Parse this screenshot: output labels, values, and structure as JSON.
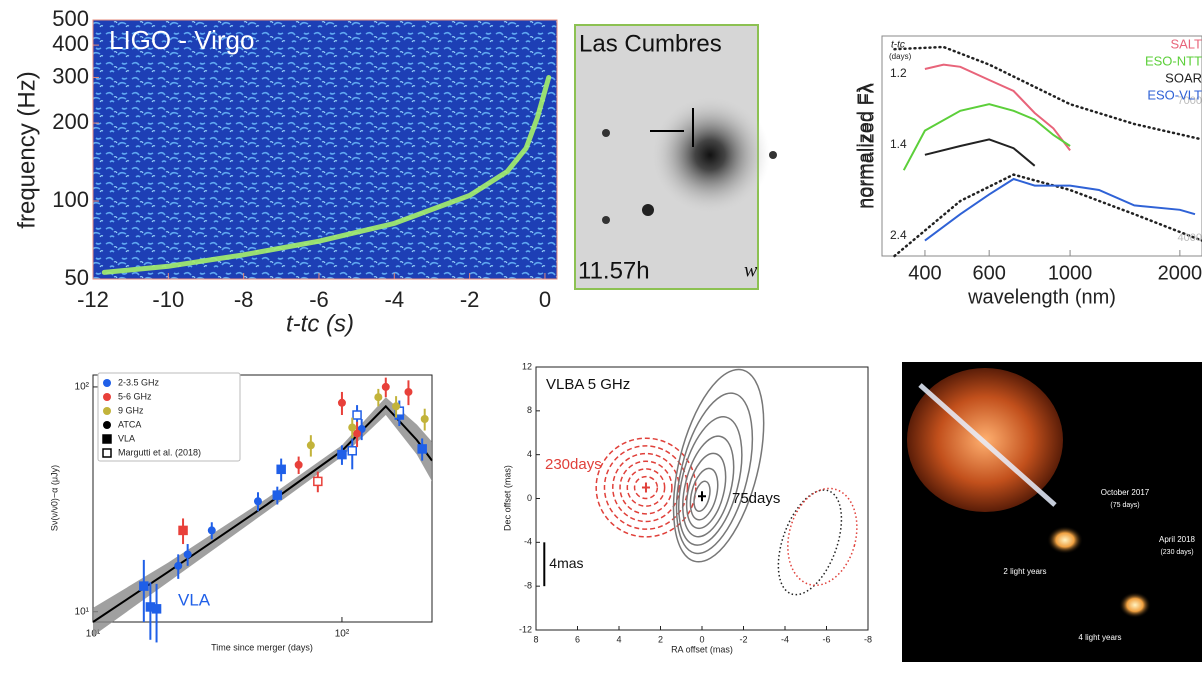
{
  "chart_data": [
    {
      "type": "spectrogram",
      "title": "LIGO - Virgo",
      "x_label": "t-tc (s)",
      "y_label": "frequency (Hz)",
      "xlim": [
        -12,
        0.32
      ],
      "xticks": [
        -12,
        -10,
        -8,
        -6,
        -4,
        -2,
        0
      ],
      "ylim": [
        50,
        500
      ],
      "yticks": [
        50,
        100,
        200,
        300,
        400,
        500
      ],
      "ylog": true,
      "color": "#a6f06a",
      "x": [
        -11.7,
        -10,
        -8,
        -6,
        -4,
        -2,
        -1,
        -0.5,
        -0.2,
        0.1
      ],
      "values": [
        53,
        56,
        62,
        70,
        82,
        105,
        130,
        160,
        210,
        300
      ]
    },
    {
      "type": "line",
      "x_label": "wavelength (nm)",
      "y_label": "normalized Fλ",
      "xlog": true,
      "xlim": [
        305,
        2300
      ],
      "xticks": [
        400,
        600,
        1000,
        2000
      ],
      "ylim": [
        0,
        1
      ],
      "days_label": [
        "t-tc",
        "(days)"
      ],
      "day_labels": [
        "1.2",
        "1.4",
        "2.4"
      ],
      "series": [
        {
          "name": "SALT",
          "color": "#e8647a",
          "x": [
            400,
            450,
            500,
            600,
            700,
            800,
            900,
            1000
          ],
          "values": [
            0.85,
            0.87,
            0.86,
            0.8,
            0.75,
            0.65,
            0.58,
            0.48
          ]
        },
        {
          "name": "ESO-NTT",
          "color": "#5ccf3a",
          "x": [
            350,
            400,
            500,
            600,
            700,
            800,
            900,
            1000
          ],
          "values": [
            0.39,
            0.57,
            0.66,
            0.69,
            0.66,
            0.62,
            0.55,
            0.5
          ]
        },
        {
          "name": "SOAR",
          "color": "#222222",
          "x": [
            400,
            500,
            600,
            700,
            800
          ],
          "values": [
            0.46,
            0.5,
            0.53,
            0.49,
            0.41
          ]
        },
        {
          "name": "ESO-VLT",
          "color": "#2f62d6",
          "x": [
            400,
            500,
            600,
            700,
            800,
            1000,
            1200,
            1500,
            2000,
            2200
          ],
          "values": [
            0.07,
            0.19,
            0.28,
            0.35,
            0.32,
            0.32,
            0.3,
            0.23,
            0.21,
            0.19
          ]
        }
      ],
      "models": [
        {
          "label": "7000",
          "x": [
            330,
            450,
            600,
            1000,
            1500,
            2300
          ],
          "values": [
            0.94,
            0.95,
            0.87,
            0.69,
            0.6,
            0.53
          ]
        },
        {
          "label": "4000",
          "x": [
            330,
            500,
            700,
            1000,
            1500,
            2300
          ],
          "values": [
            0.0,
            0.25,
            0.37,
            0.3,
            0.19,
            0.07
          ]
        }
      ]
    },
    {
      "type": "scatter",
      "x_label": "Time since merger (days)",
      "y_label": "Sν(ν/ν0)−α (μJy)",
      "xlog": true,
      "ylog": true,
      "xlim": [
        10,
        230
      ],
      "xticks": [
        {
          "value": 10,
          "label": "10¹"
        },
        {
          "value": 100,
          "label": "10²"
        }
      ],
      "ylim": [
        9,
        113
      ],
      "yticks": [
        {
          "value": 10,
          "label": "10¹"
        },
        {
          "value": 100,
          "label": "10²"
        }
      ],
      "series": [
        {
          "name": "2-3.5 GHz",
          "color": "#1f5fe8",
          "x": [
            16,
            17,
            18,
            22,
            24,
            30,
            46,
            55,
            57,
            100,
            120,
            170,
            210,
            110,
            115,
            170
          ],
          "values": [
            13,
            10.5,
            10.3,
            16,
            18,
            23,
            31,
            33,
            43,
            50,
            65,
            75,
            53,
            52,
            75,
            78
          ],
          "errors": [
            4,
            3,
            3,
            2,
            2,
            2,
            3,
            3,
            5,
            5,
            7,
            8,
            6,
            9,
            8,
            9
          ],
          "markers": [
            "square",
            "square",
            "square",
            "circle",
            "circle",
            "circle",
            "circle",
            "square",
            "square",
            "square",
            "circle",
            "square",
            "square",
            "open-square",
            "open-square",
            "open-square"
          ]
        },
        {
          "name": "5-6 GHz",
          "color": "#e8403a",
          "x": [
            23,
            67,
            100,
            115,
            150,
            185,
            80
          ],
          "values": [
            23,
            45,
            85,
            62,
            100,
            95,
            38
          ],
          "errors": [
            3,
            4,
            10,
            8,
            10,
            12,
            4
          ],
          "markers": [
            "square",
            "circle",
            "circle",
            "circle",
            "circle",
            "circle",
            "open-square"
          ]
        },
        {
          "name": "9 GHz",
          "color": "#c2b33a",
          "x": [
            75,
            110,
            140,
            165,
            215
          ],
          "values": [
            55,
            66,
            90,
            82,
            72
          ],
          "errors": [
            6,
            7,
            8,
            9,
            8
          ],
          "markers": [
            "circle",
            "circle",
            "circle",
            "circle",
            "circle"
          ]
        }
      ],
      "marker_legend": [
        {
          "name": "ATCA",
          "marker": "circle"
        },
        {
          "name": "VLA",
          "marker": "square"
        },
        {
          "name": "Margutti et al. (2018)",
          "marker": "open-square"
        }
      ],
      "model": {
        "x": [
          10,
          20,
          50,
          100,
          150,
          200,
          230
        ],
        "values": [
          9,
          15,
          30,
          52,
          82,
          58,
          47
        ],
        "lower": [
          7.8,
          13.5,
          28,
          49,
          75,
          50,
          38
        ],
        "upper": [
          10.4,
          16.5,
          32,
          55,
          90,
          68,
          57
        ]
      },
      "annotation": {
        "text": "VLA",
        "color": "#1f5fe8"
      }
    },
    {
      "type": "contour",
      "title": "VLBA 5 GHz",
      "x_label": "RA offset (mas)",
      "y_label": "Dec offset (mas)",
      "xlim": [
        8,
        -8
      ],
      "xticks": [
        8,
        6,
        4,
        2,
        0,
        -2,
        -4,
        -6,
        -8
      ],
      "ylim": [
        -12,
        12
      ],
      "yticks": [
        -12,
        -8,
        -4,
        0,
        4,
        8,
        12
      ],
      "contours": [
        {
          "name": "230days",
          "color": "#e0403a",
          "tilt": 0,
          "levels": [
            [
              2.7,
              1,
              2.4,
              4.5
            ],
            [
              2.7,
              1,
              2,
              3.8
            ],
            [
              2.7,
              1,
              1.6,
              3.1
            ],
            [
              2.7,
              1,
              1.25,
              2.4
            ],
            [
              2.7,
              1,
              0.9,
              1.7
            ],
            [
              2.7,
              1,
              0.55,
              1
            ]
          ]
        },
        {
          "name": "75days",
          "color": "#777777",
          "tilt": 14,
          "levels": [
            [
              -0.8,
              3,
              1.9,
              9
            ],
            [
              -0.6,
              2.3,
              1.6,
              7.5
            ],
            [
              -0.4,
              1.6,
              1.35,
              6
            ],
            [
              -0.3,
              1.1,
              1.1,
              4.7
            ],
            [
              -0.2,
              0.7,
              0.85,
              3.5
            ],
            [
              -0.1,
              0.4,
              0.6,
              2.4
            ],
            [
              0,
              0.2,
              0.35,
              1.4
            ]
          ]
        }
      ],
      "beams": [
        {
          "color": "#222222",
          "tilt": 20,
          "ellipse": [
            -5.2,
            -4,
            1.3,
            5
          ]
        },
        {
          "color": "#e0403a",
          "tilt": 15,
          "ellipse": [
            -5.8,
            -3.5,
            1.6,
            4.5
          ]
        }
      ],
      "scale_bar": {
        "label": "4mas",
        "x": 7.6,
        "from": -8,
        "to": -4
      }
    }
  ],
  "images": [
    {
      "title": "Las Cumbres",
      "caption": "11.57h",
      "mark": "w"
    },
    {
      "labels": [
        "October 2017",
        "(75 days)",
        "April 2018",
        "(230 days)",
        "2 light years",
        "4 light years"
      ]
    }
  ]
}
